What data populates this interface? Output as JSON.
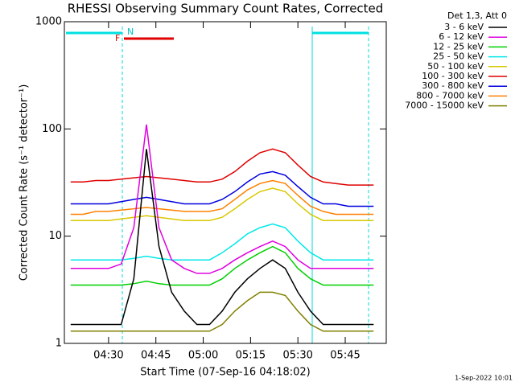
{
  "chart_data": {
    "type": "line",
    "title": "RHESSI Observing Summary Count Rates, Corrected",
    "x_label": "Start Time (07-Sep-16 04:18:02)",
    "y_label": "Corrected Count Rate (s⁻¹ detector⁻¹)",
    "legend_title": "Det 1,3, Att 0",
    "footer": "1-Sep-2022 10:01",
    "flags": [
      "N",
      "F"
    ],
    "log_y": true,
    "xlim": [
      "04:16",
      "05:58"
    ],
    "xticks": [
      "04:30",
      "04:45",
      "05:00",
      "05:15",
      "05:30",
      "05:45"
    ],
    "ylim": [
      1,
      1000
    ],
    "yticks": [
      1,
      10,
      100,
      1000
    ],
    "x": [
      "04:18",
      "04:22",
      "04:26",
      "04:30",
      "04:34",
      "04:38",
      "04:42",
      "04:46",
      "04:50",
      "04:54",
      "04:58",
      "05:02",
      "05:06",
      "05:10",
      "05:14",
      "05:18",
      "05:22",
      "05:26",
      "05:30",
      "05:34",
      "05:38",
      "05:42",
      "05:46",
      "05:50",
      "05:54"
    ],
    "series": [
      {
        "name": "3 - 6 keV",
        "color": "#000000",
        "values": [
          1.5,
          1.5,
          1.5,
          1.5,
          1.5,
          4,
          65,
          8,
          3,
          2,
          1.5,
          1.5,
          2,
          3,
          4,
          5,
          6,
          5,
          3,
          2,
          1.5,
          1.5,
          1.5,
          1.5,
          1.5
        ]
      },
      {
        "name": "6 - 12 keV",
        "color": "#e000e0",
        "values": [
          5,
          5,
          5,
          5,
          5.5,
          12,
          110,
          12,
          6,
          5,
          4.5,
          4.5,
          5,
          6,
          7,
          8,
          9,
          8,
          6,
          5,
          5,
          5,
          5,
          5,
          5
        ]
      },
      {
        "name": "12 - 25 keV",
        "color": "#00d000",
        "values": [
          3.5,
          3.5,
          3.5,
          3.5,
          3.5,
          3.6,
          3.8,
          3.6,
          3.5,
          3.5,
          3.5,
          3.5,
          4,
          5,
          6,
          7,
          8,
          7,
          5,
          4,
          3.5,
          3.5,
          3.5,
          3.5,
          3.5
        ]
      },
      {
        "name": "25 - 50 keV",
        "color": "#00e8e8",
        "values": [
          6,
          6,
          6,
          6,
          6,
          6.2,
          6.5,
          6.2,
          6,
          6,
          6,
          6,
          7,
          8.5,
          10.5,
          12,
          13,
          12,
          9,
          7,
          6,
          6,
          6,
          6,
          6
        ]
      },
      {
        "name": "50 - 100 keV",
        "color": "#d8c800",
        "values": [
          14,
          14,
          14,
          14,
          14.5,
          15,
          15.5,
          15,
          14.5,
          14,
          14,
          14,
          15,
          18,
          22,
          26,
          28,
          26,
          20,
          16,
          14,
          14,
          14,
          14,
          14
        ]
      },
      {
        "name": "100 - 300 keV",
        "color": "#e00000",
        "values": [
          32,
          32,
          33,
          33,
          34,
          35,
          36,
          35,
          34,
          33,
          32,
          32,
          34,
          40,
          50,
          60,
          65,
          60,
          46,
          36,
          32,
          31,
          30,
          30,
          30
        ]
      },
      {
        "name": "300 - 800 keV",
        "color": "#0000e0",
        "values": [
          20,
          20,
          20,
          20,
          21,
          22,
          23,
          22,
          21,
          20,
          20,
          20,
          22,
          26,
          32,
          38,
          40,
          37,
          29,
          23,
          20,
          20,
          19,
          19,
          19
        ]
      },
      {
        "name": "800 - 7000 keV",
        "color": "#ff8000",
        "values": [
          16,
          16,
          17,
          17,
          17.5,
          18,
          18.5,
          18,
          17.5,
          17,
          17,
          17,
          18,
          22,
          27,
          31,
          33,
          31,
          24,
          19,
          17,
          16,
          16,
          16,
          16
        ]
      },
      {
        "name": "7000 - 15000 keV",
        "color": "#808000",
        "values": [
          1.3,
          1.3,
          1.3,
          1.3,
          1.3,
          1.3,
          1.3,
          1.3,
          1.3,
          1.3,
          1.3,
          1.3,
          1.5,
          2,
          2.5,
          3,
          3,
          2.8,
          2,
          1.5,
          1.3,
          1.3,
          1.3,
          1.3,
          1.3
        ]
      }
    ]
  }
}
